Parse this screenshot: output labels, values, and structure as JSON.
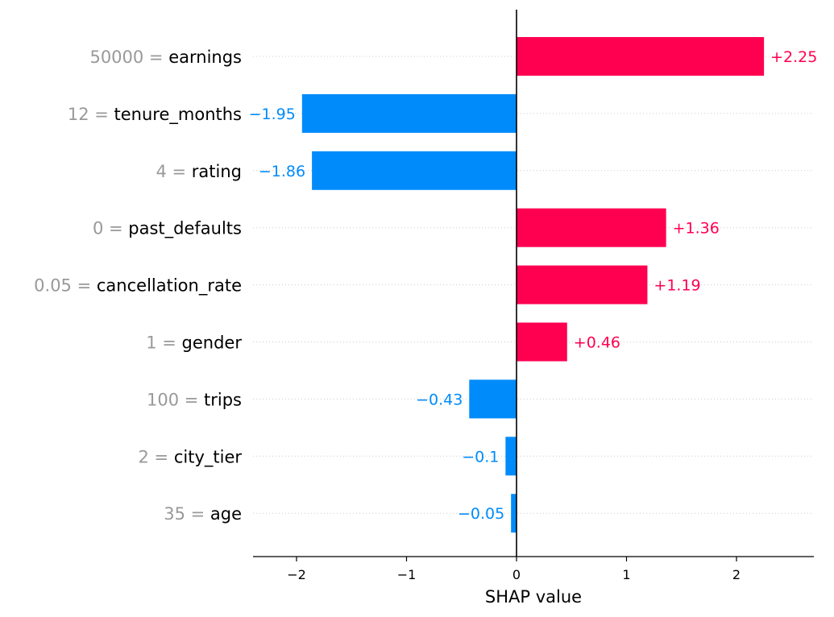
{
  "chart_data": {
    "type": "bar",
    "orientation": "horizontal",
    "xlabel": "SHAP value",
    "xlim": [
      -2.38,
      2.7
    ],
    "xticks": [
      -2,
      -1,
      0,
      1,
      2
    ],
    "xtick_labels": [
      "−2",
      "−1",
      "0",
      "1",
      "2"
    ],
    "grid": false,
    "features": [
      {
        "value": "50000",
        "name": "earnings",
        "shap": 2.25,
        "label": "+2.25"
      },
      {
        "value": "12",
        "name": "tenure_months",
        "shap": -1.95,
        "label": "−1.95"
      },
      {
        "value": "4",
        "name": "rating",
        "shap": -1.86,
        "label": "−1.86"
      },
      {
        "value": "0",
        "name": "past_defaults",
        "shap": 1.36,
        "label": "+1.36"
      },
      {
        "value": "0.05",
        "name": "cancellation_rate",
        "shap": 1.19,
        "label": "+1.19"
      },
      {
        "value": "1",
        "name": "gender",
        "shap": 0.46,
        "label": "+0.46"
      },
      {
        "value": "100",
        "name": "trips",
        "shap": -0.43,
        "label": "−0.43"
      },
      {
        "value": "2",
        "name": "city_tier",
        "shap": -0.1,
        "label": "−0.1"
      },
      {
        "value": "35",
        "name": "age",
        "shap": -0.05,
        "label": "−0.05"
      }
    ],
    "colors": {
      "positive": "#ff0051",
      "negative": "#008bfb"
    }
  }
}
